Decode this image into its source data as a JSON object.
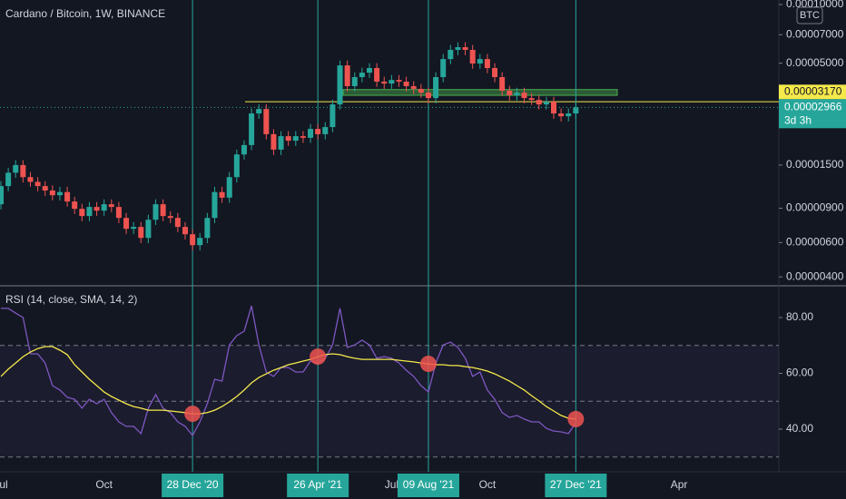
{
  "chart_data": [
    {
      "type": "candlestick",
      "title": "Cardano / Bitcoin, 1W, BINANCE",
      "currency": "BTC",
      "log_scale": true,
      "up_color": "#26a69a",
      "down_color": "#ef5350",
      "categories": [
        "Jul",
        null,
        null,
        null,
        null,
        null,
        null,
        null,
        null,
        null,
        null,
        null,
        null,
        null,
        "Oct",
        null,
        null,
        null,
        null,
        null,
        null,
        null,
        null,
        null,
        null,
        null,
        "28 Dec '20",
        null,
        null,
        null,
        null,
        null,
        null,
        null,
        null,
        null,
        null,
        null,
        null,
        null,
        null,
        null,
        null,
        "26 Apr '21",
        null,
        null,
        null,
        null,
        null,
        null,
        null,
        null,
        null,
        "Jul",
        null,
        null,
        null,
        null,
        "09 Aug '21",
        null,
        null,
        null,
        null,
        null,
        null,
        null,
        "Oct",
        null,
        null,
        null,
        null,
        null,
        null,
        null,
        null,
        null,
        null,
        null,
        "27 Dec '21",
        null,
        null,
        null,
        null,
        null,
        null,
        null,
        null,
        null,
        null,
        null,
        null,
        null,
        "Apr",
        null,
        null,
        null,
        null,
        null,
        null,
        null,
        null,
        null,
        null,
        null,
        null,
        null
      ],
      "open": [
        9.44e-06,
        1.17e-05,
        1.37e-05,
        1.5e-05,
        1.3e-05,
        1.23e-05,
        1.17e-05,
        1.11e-05,
        1.05e-05,
        1.09e-05,
        9.75e-06,
        8.94e-06,
        8.21e-06,
        9.14e-06,
        8.75e-06,
        9.44e-06,
        9.14e-06,
        8.03e-06,
        7.06e-06,
        7.22e-06,
        6.34e-06,
        7.86e-06,
        9.44e-06,
        8.21e-06,
        8.03e-06,
        7.22e-06,
        6.62e-06,
        5.82e-06,
        6.34e-06,
        8.03e-06,
        1.09e-05,
        1.02e-05,
        1.3e-05,
        1.7e-05,
        1.9e-05,
        2.76e-05,
        2.91e-05,
        2.16e-05,
        1.8e-05,
        2.11e-05,
        2e-05,
        2.11e-05,
        2.07e-05,
        2.3e-05,
        2.16e-05,
        2.35e-05,
        3.07e-05,
        4.87e-05,
        3.81e-05,
        4.24e-05,
        4.47e-05,
        4.72e-05,
        4.02e-05,
        3.93e-05,
        4.1e-05,
        4.02e-05,
        3.81e-05,
        3.69e-05,
        3.53e-05,
        3.31e-05,
        4.24e-05,
        5.25e-05,
        5.85e-05,
        6.04e-05,
        5.85e-05,
        4.98e-05,
        5.25e-05,
        4.72e-05,
        4.24e-05,
        3.61e-05,
        3.42e-05,
        3.53e-05,
        3.31e-05,
        3.24e-05,
        3.07e-05,
        3.17e-05,
        2.76e-05,
        2.67e-05,
        2.76e-05,
        null,
        null,
        null,
        null,
        null,
        null,
        null,
        null,
        null,
        null,
        null,
        null,
        null,
        null,
        null,
        null,
        null,
        null,
        null,
        null,
        null,
        null,
        null,
        null,
        null,
        null,
        null
      ],
      "high": [
        1.24e-05,
        1.45e-05,
        1.59e-05,
        1.59e-05,
        1.38e-05,
        1.3e-05,
        1.24e-05,
        1.18e-05,
        1.16e-05,
        1.16e-05,
        1.03e-05,
        9.48e-06,
        9.69e-06,
        9.69e-06,
        1e-05,
        1e-05,
        9.69e-06,
        8.51e-06,
        7.65e-06,
        7.65e-06,
        8.33e-06,
        1e-05,
        1e-05,
        8.7e-06,
        8.51e-06,
        7.65e-06,
        7.02e-06,
        6.72e-06,
        8.51e-06,
        1.16e-05,
        1.16e-05,
        1.38e-05,
        1.8e-05,
        2.01e-05,
        2.93e-05,
        3.08e-05,
        3.08e-05,
        2.29e-05,
        2.24e-05,
        2.24e-05,
        2.24e-05,
        2.24e-05,
        2.44e-05,
        2.44e-05,
        2.49e-05,
        3.25e-05,
        5.16e-05,
        5.16e-05,
        4.49e-05,
        4.74e-05,
        5e-05,
        5e-05,
        4.26e-05,
        4.35e-05,
        4.35e-05,
        4.26e-05,
        4.04e-05,
        3.91e-05,
        3.74e-05,
        4.49e-05,
        5.57e-05,
        6.2e-05,
        6.4e-05,
        6.4e-05,
        6.2e-05,
        5.57e-05,
        5.57e-05,
        5e-05,
        4.49e-05,
        3.83e-05,
        3.74e-05,
        3.74e-05,
        3.51e-05,
        3.43e-05,
        3.36e-05,
        3.36e-05,
        2.93e-05,
        2.93e-05,
        3.14e-05,
        null,
        null,
        null,
        null,
        null,
        null,
        null,
        null,
        null,
        null,
        null,
        null,
        null,
        null,
        null,
        null,
        null,
        null,
        null,
        null,
        null,
        null,
        null,
        null,
        null,
        null,
        null
      ],
      "low": [
        8.87e-06,
        1.1e-05,
        1.29e-05,
        1.22e-05,
        1.16e-05,
        1.1e-05,
        1.04e-05,
        9.87e-06,
        9.87e-06,
        9.17e-06,
        8.4e-06,
        7.72e-06,
        7.72e-06,
        8.23e-06,
        8.23e-06,
        8.59e-06,
        7.55e-06,
        6.64e-06,
        6.64e-06,
        5.96e-06,
        5.96e-06,
        7.39e-06,
        7.72e-06,
        7.55e-06,
        6.79e-06,
        6.22e-06,
        5.47e-06,
        5.47e-06,
        5.96e-06,
        7.55e-06,
        9.59e-06,
        9.59e-06,
        1.22e-05,
        1.6e-05,
        1.79e-05,
        2.59e-05,
        2.03e-05,
        1.69e-05,
        1.69e-05,
        1.88e-05,
        1.88e-05,
        1.95e-05,
        1.95e-05,
        2.03e-05,
        2.03e-05,
        2.21e-05,
        2.89e-05,
        3.58e-05,
        3.58e-05,
        3.99e-05,
        4.2e-05,
        3.78e-05,
        3.69e-05,
        3.69e-05,
        3.78e-05,
        3.58e-05,
        3.47e-05,
        3.32e-05,
        3.11e-05,
        3.11e-05,
        3.99e-05,
        4.94e-05,
        5.5e-05,
        5.5e-05,
        4.68e-05,
        4.68e-05,
        4.44e-05,
        3.99e-05,
        3.39e-05,
        3.21e-05,
        3.21e-05,
        3.11e-05,
        3.05e-05,
        2.89e-05,
        2.89e-05,
        2.59e-05,
        2.51e-05,
        2.51e-05,
        2.59e-05,
        null,
        null,
        null,
        null,
        null,
        null,
        null,
        null,
        null,
        null,
        null,
        null,
        null,
        null,
        null,
        null,
        null,
        null,
        null,
        null,
        null,
        null,
        null,
        null,
        null,
        null,
        null
      ],
      "close": [
        1.17e-05,
        1.37e-05,
        1.5e-05,
        1.3e-05,
        1.23e-05,
        1.17e-05,
        1.11e-05,
        1.05e-05,
        1.09e-05,
        9.75e-06,
        8.94e-06,
        8.21e-06,
        9.14e-06,
        8.75e-06,
        9.44e-06,
        9.14e-06,
        8.03e-06,
        7.06e-06,
        7.22e-06,
        6.34e-06,
        7.86e-06,
        9.44e-06,
        8.21e-06,
        8.03e-06,
        7.22e-06,
        6.62e-06,
        5.82e-06,
        6.34e-06,
        8.03e-06,
        1.09e-05,
        1.02e-05,
        1.3e-05,
        1.7e-05,
        1.9e-05,
        2.76e-05,
        2.91e-05,
        2.16e-05,
        1.8e-05,
        2.11e-05,
        2e-05,
        2.11e-05,
        2.07e-05,
        2.3e-05,
        2.16e-05,
        2.35e-05,
        3.07e-05,
        4.87e-05,
        3.81e-05,
        4.24e-05,
        4.47e-05,
        4.72e-05,
        4.02e-05,
        3.93e-05,
        4.1e-05,
        4.02e-05,
        3.81e-05,
        3.69e-05,
        3.53e-05,
        3.31e-05,
        4.24e-05,
        5.25e-05,
        5.85e-05,
        6.04e-05,
        5.85e-05,
        4.98e-05,
        5.25e-05,
        4.72e-05,
        4.24e-05,
        3.61e-05,
        3.42e-05,
        3.53e-05,
        3.31e-05,
        3.24e-05,
        3.07e-05,
        3.17e-05,
        2.76e-05,
        2.67e-05,
        2.76e-05,
        2.966e-05,
        null,
        null,
        null,
        null,
        null,
        null,
        null,
        null,
        null,
        null,
        null,
        null,
        null,
        null,
        null,
        null,
        null,
        null,
        null,
        null,
        null,
        null,
        null,
        null,
        null,
        null,
        null
      ],
      "ylim": [
        3.6e-06,
        0.0001055
      ],
      "yticks": [
        {
          "value": 0.0001,
          "label": "0.00010000"
        },
        {
          "value": 7e-05,
          "label": "0.00007000"
        },
        {
          "value": 5e-05,
          "label": "0.00005000"
        },
        {
          "value": 1.5e-05,
          "label": "0.00001500"
        },
        {
          "value": 9e-06,
          "label": "0.00000900"
        },
        {
          "value": 6e-06,
          "label": "0.00000600"
        },
        {
          "value": 4e-06,
          "label": "0.00000400"
        }
      ],
      "price_line": {
        "value": 3.17e-05,
        "label": "0.00003170",
        "color": "#f5e94b"
      },
      "last_price": {
        "value": 2.966e-05,
        "label": "0.00002966",
        "countdown": "3d 3h",
        "color": "#26a69a"
      },
      "zone": {
        "top": 3.66e-05,
        "bottom": 3.42e-05,
        "color": "#4caf50"
      }
    },
    {
      "type": "line",
      "title": "RSI (14, close, SMA, 14, 2)",
      "series": [
        {
          "color": "#7e57c2",
          "values": [
            83.3,
            83.3,
            81.6,
            80,
            67,
            67,
            63.7,
            55.6,
            54,
            51.4,
            50.7,
            47.5,
            50.7,
            49.1,
            50.7,
            45.9,
            42.6,
            41,
            41,
            38.4,
            47.5,
            52.4,
            47.5,
            45.9,
            42.6,
            41,
            37.7,
            42.6,
            49.1,
            57.9,
            57.2,
            70.2,
            73.5,
            75.1,
            84.2,
            70.2,
            60.5,
            58.9,
            62.1,
            62.1,
            60.5,
            60.5,
            64.4,
            63.7,
            65.4,
            70.2,
            83.3,
            69.3,
            70.2,
            71.9,
            70.2,
            65.4,
            66,
            65.4,
            63.7,
            61.1,
            58.9,
            55.6,
            53.3,
            63.7,
            70.2,
            71.2,
            69.3,
            65.4,
            58.9,
            60.5,
            54,
            50.7,
            45.9,
            44.2,
            44.9,
            43.6,
            42.6,
            42.6,
            40.3,
            39.3,
            39,
            38.4,
            42.3,
            null,
            null,
            null,
            null,
            null,
            null,
            null,
            null,
            null,
            null,
            null,
            null,
            null,
            null,
            null,
            null,
            null,
            null,
            null,
            null,
            null,
            null,
            null,
            null,
            null,
            null,
            null
          ]
        },
        {
          "color": "#f5e94b",
          "values": [
            58.9,
            61.5,
            63.7,
            66,
            67.6,
            68.9,
            69.6,
            69.6,
            68.3,
            66.7,
            63.1,
            60.5,
            57.9,
            55.6,
            53.3,
            51.7,
            50.4,
            49.1,
            48.1,
            47.5,
            46.8,
            46.8,
            46.8,
            46.5,
            46.2,
            45.9,
            45.5,
            45.5,
            45.9,
            46.8,
            48.1,
            49.8,
            51.7,
            54,
            56.6,
            58.5,
            59.8,
            61.1,
            62.1,
            63.1,
            63.7,
            64.4,
            65,
            66,
            66.7,
            67,
            66.7,
            66,
            65.4,
            65,
            65,
            65,
            65,
            65,
            64.7,
            64.4,
            64.1,
            63.7,
            63.4,
            63.1,
            63.1,
            62.8,
            62.8,
            62.4,
            62.1,
            61.5,
            60.8,
            59.8,
            58.5,
            57.2,
            55.6,
            54,
            52,
            50.1,
            48.1,
            46.5,
            44.9,
            43.9,
            43.6,
            null,
            null,
            null,
            null,
            null,
            null,
            null,
            null,
            null,
            null,
            null,
            null,
            null,
            null,
            null,
            null,
            null,
            null,
            null,
            null,
            null,
            null,
            null,
            null,
            null,
            null,
            null
          ]
        }
      ],
      "ylim": [
        24.7,
        91.4
      ],
      "yticks": [
        {
          "value": 80,
          "label": "80.00"
        },
        {
          "value": 60,
          "label": "60.00"
        },
        {
          "value": 40,
          "label": "40.00"
        }
      ],
      "levels": [
        70,
        50,
        30
      ],
      "marker_color": "#ef5350"
    }
  ]
}
